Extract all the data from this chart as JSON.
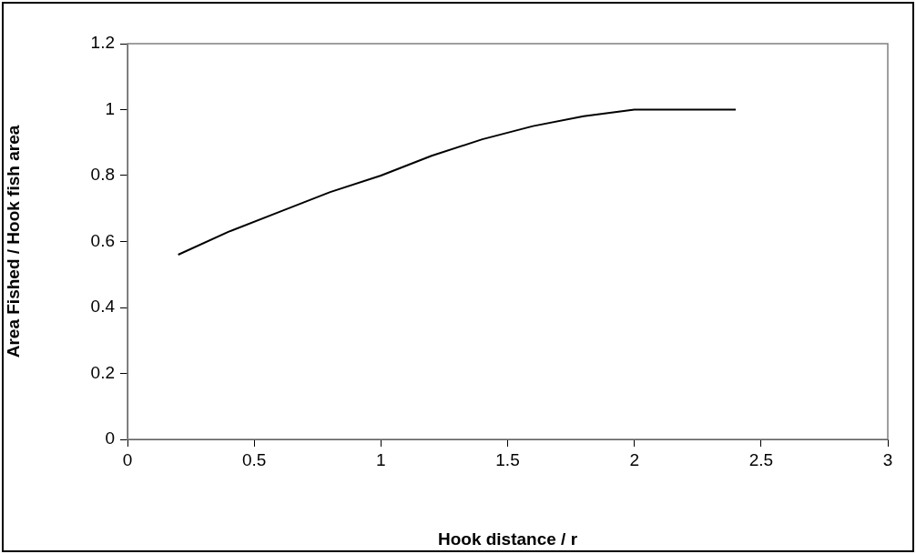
{
  "chart_data": {
    "type": "line",
    "xlabel": "Hook distance / r",
    "ylabel": "Area Fished / Hook fish area",
    "x": [
      0.2,
      0.4,
      0.6,
      0.8,
      1.0,
      1.2,
      1.4,
      1.6,
      1.8,
      2.0,
      2.2,
      2.4
    ],
    "series": [
      {
        "color": "#000000",
        "values": [
          0.56,
          0.63,
          0.69,
          0.75,
          0.8,
          0.86,
          0.91,
          0.95,
          0.98,
          1.0,
          1.0,
          1.0
        ]
      }
    ],
    "xlim": [
      0,
      3
    ],
    "xticks": [
      0,
      0.5,
      1,
      1.5,
      2,
      2.5,
      3
    ],
    "ylim": [
      0,
      1.2
    ],
    "yticks": [
      0,
      0.2,
      0.4,
      0.6,
      0.8,
      1,
      1.2
    ],
    "grid": false,
    "legend": false,
    "marker": "none",
    "line_style": "solid"
  }
}
